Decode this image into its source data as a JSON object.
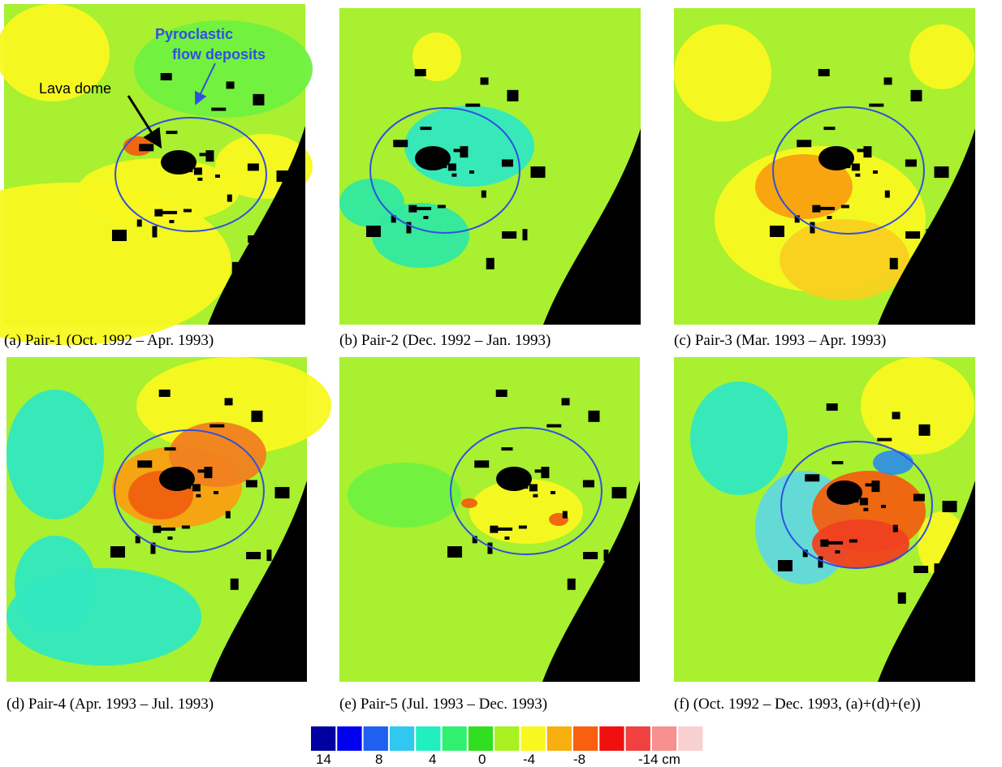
{
  "panels": [
    {
      "caption": "(a) Pair-1 (Oct. 1992 –  Apr. 1993)"
    },
    {
      "caption": "(b) Pair-2 (Dec. 1992 –  Jan. 1993)"
    },
    {
      "caption": "(c) Pair-3 (Mar. 1993 –  Apr. 1993)"
    },
    {
      "caption": "(d) Pair-4 (Apr. 1993 –  Jul. 1993)"
    },
    {
      "caption": "(e) Pair-5 (Jul. 1993 –  Dec. 1993)"
    },
    {
      "caption": "(f) (Oct. 1992 –  Dec. 1993, (a)+(d)+(e))"
    }
  ],
  "annotations": {
    "lava_dome": "Lava dome",
    "pyroclastic": [
      "Pyroclastic",
      "flow deposits"
    ]
  },
  "colorbar": {
    "colors": [
      "#0000a0",
      "#0000f0",
      "#2060f0",
      "#30c8f0",
      "#20f0c0",
      "#30f070",
      "#30e020",
      "#a8f020",
      "#f8f820",
      "#f8b010",
      "#f86010",
      "#f01010",
      "#f04040",
      "#f89090",
      "#f8d0d0"
    ],
    "labels": [
      "14",
      "8",
      "4",
      "0",
      "-4",
      "-8",
      "-14 cm"
    ]
  }
}
